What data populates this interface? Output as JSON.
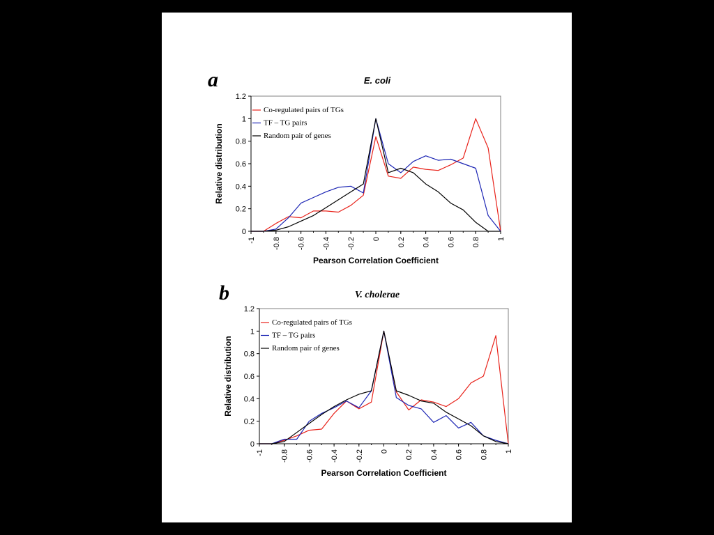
{
  "chart_data": [
    {
      "type": "line",
      "panel_label": "a",
      "title": "E. coli",
      "xlabel": "Pearson Correlation Coefficient",
      "ylabel": "Relative distribution",
      "xlim": [
        -1,
        1
      ],
      "ylim": [
        0,
        1.2
      ],
      "x_ticks": [
        "-1",
        "-0.8",
        "-0.6",
        "-0.4",
        "-0.2",
        "0",
        "0.2",
        "0.4",
        "0.6",
        "0.8",
        "1"
      ],
      "y_ticks": [
        "0",
        "0.2",
        "0.4",
        "0.6",
        "0.8",
        "1",
        "1.2"
      ],
      "legend_position": "top-left",
      "series": [
        {
          "name": "Co-regulated pairs of TGs",
          "color": "#e8221a",
          "x": [
            -1,
            -0.9,
            -0.8,
            -0.7,
            -0.6,
            -0.5,
            -0.4,
            -0.3,
            -0.2,
            -0.1,
            0,
            0.1,
            0.2,
            0.3,
            0.4,
            0.5,
            0.6,
            0.7,
            0.8,
            0.9,
            1
          ],
          "y": [
            0,
            0,
            0.07,
            0.13,
            0.12,
            0.18,
            0.18,
            0.17,
            0.23,
            0.32,
            0.84,
            0.49,
            0.47,
            0.57,
            0.55,
            0.54,
            0.59,
            0.65,
            1.0,
            0.74,
            0
          ]
        },
        {
          "name": "TF – TG pairs",
          "color": "#1c25b4",
          "x": [
            -1,
            -0.9,
            -0.8,
            -0.7,
            -0.6,
            -0.5,
            -0.4,
            -0.3,
            -0.2,
            -0.1,
            0,
            0.1,
            0.2,
            0.3,
            0.4,
            0.5,
            0.6,
            0.7,
            0.8,
            0.9,
            1
          ],
          "y": [
            0,
            0,
            0.02,
            0.12,
            0.25,
            0.3,
            0.35,
            0.39,
            0.4,
            0.34,
            1.0,
            0.6,
            0.52,
            0.62,
            0.67,
            0.63,
            0.64,
            0.6,
            0.56,
            0.14,
            0
          ]
        },
        {
          "name": "Random pair of genes",
          "color": "#000000",
          "x": [
            -1,
            -0.9,
            -0.8,
            -0.7,
            -0.6,
            -0.5,
            -0.4,
            -0.3,
            -0.2,
            -0.1,
            0,
            0.1,
            0.2,
            0.3,
            0.4,
            0.5,
            0.6,
            0.7,
            0.8,
            0.9,
            1
          ],
          "y": [
            0,
            0,
            0.01,
            0.04,
            0.09,
            0.14,
            0.21,
            0.28,
            0.35,
            0.42,
            1.0,
            0.52,
            0.56,
            0.52,
            0.42,
            0.35,
            0.25,
            0.19,
            0.08,
            0,
            0
          ]
        }
      ]
    },
    {
      "type": "line",
      "panel_label": "b",
      "title": "V. cholerae",
      "xlabel": "Pearson Correlation Coefficient",
      "ylabel": "Relative distribution",
      "xlim": [
        -1,
        1
      ],
      "ylim": [
        0,
        1.2
      ],
      "x_ticks": [
        "-1",
        "-0.8",
        "-0.6",
        "-0.4",
        "-0.2",
        "0",
        "0.2",
        "0.4",
        "0.6",
        "0.8",
        "1"
      ],
      "y_ticks": [
        "0",
        "0.2",
        "0.4",
        "0.6",
        "0.8",
        "1",
        "1.2"
      ],
      "legend_position": "top-left",
      "series": [
        {
          "name": "Co-regulated pairs of TGs",
          "color": "#e8221a",
          "x": [
            -1,
            -0.9,
            -0.8,
            -0.7,
            -0.6,
            -0.5,
            -0.4,
            -0.3,
            -0.2,
            -0.1,
            0,
            0.1,
            0.2,
            0.3,
            0.4,
            0.5,
            0.6,
            0.7,
            0.8,
            0.9,
            1
          ],
          "y": [
            0,
            0,
            0.03,
            0.07,
            0.12,
            0.13,
            0.27,
            0.38,
            0.31,
            0.37,
            1.0,
            0.46,
            0.3,
            0.39,
            0.37,
            0.33,
            0.4,
            0.54,
            0.6,
            0.96,
            0
          ]
        },
        {
          "name": "TF – TG pairs",
          "color": "#1c25b4",
          "x": [
            -1,
            -0.9,
            -0.8,
            -0.7,
            -0.6,
            -0.5,
            -0.4,
            -0.3,
            -0.2,
            -0.1,
            0,
            0.1,
            0.2,
            0.3,
            0.4,
            0.5,
            0.6,
            0.7,
            0.8,
            0.9,
            1
          ],
          "y": [
            0,
            0,
            0.04,
            0.04,
            0.2,
            0.27,
            0.32,
            0.38,
            0.32,
            0.47,
            1.0,
            0.41,
            0.34,
            0.31,
            0.19,
            0.25,
            0.14,
            0.19,
            0.07,
            0.03,
            0
          ]
        },
        {
          "name": "Random pair of genes",
          "color": "#000000",
          "x": [
            -1,
            -0.9,
            -0.8,
            -0.7,
            -0.6,
            -0.5,
            -0.4,
            -0.3,
            -0.2,
            -0.1,
            0,
            0.1,
            0.2,
            0.3,
            0.4,
            0.5,
            0.6,
            0.7,
            0.8,
            0.9,
            1
          ],
          "y": [
            0,
            0,
            0.02,
            0.1,
            0.18,
            0.26,
            0.33,
            0.39,
            0.44,
            0.47,
            1.0,
            0.47,
            0.43,
            0.38,
            0.36,
            0.28,
            0.22,
            0.16,
            0.07,
            0.02,
            0
          ]
        }
      ]
    }
  ]
}
